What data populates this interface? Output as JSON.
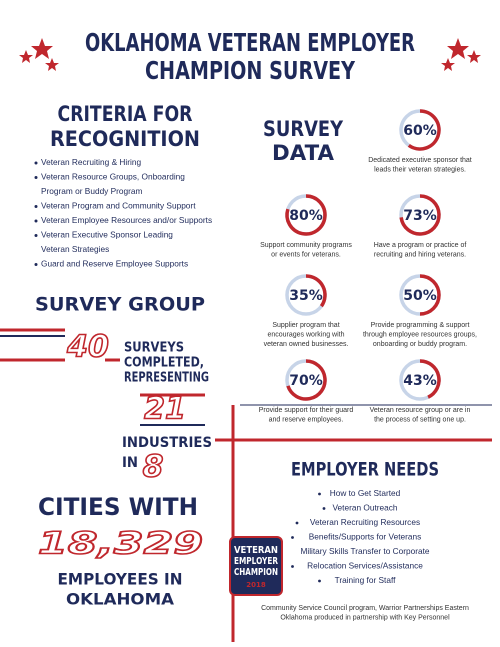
{
  "header": {
    "title_lines": [
      "OKLAHOMA VETERAN EMPLOYER",
      "CHAMPION SURVEY"
    ]
  },
  "criteria": {
    "title_lines": [
      "CRITERIA FOR",
      "RECOGNITION"
    ],
    "items": [
      [
        "Veteran Recruiting & Hiring"
      ],
      [
        "Veteran Resource Groups, Onboarding",
        "Program or Buddy Program"
      ],
      [
        "Veteran Program and Community Support"
      ],
      [
        "Veteran Employee Resources and/or Supports"
      ],
      [
        "Veteran Executive Sponsor Leading",
        "Veteran Strategies"
      ],
      [
        "Guard and Reserve Employee Supports"
      ]
    ]
  },
  "survey_data": {
    "title_lines": [
      "SURVEY",
      "DATA"
    ],
    "items": [
      {
        "value": 60,
        "label": "60%",
        "caption": [
          "Dedicated executive sponsor that",
          "leads their veteran strategies."
        ]
      },
      {
        "value": 80,
        "label": "80%",
        "caption": [
          "Support community programs",
          "or events for veterans."
        ]
      },
      {
        "value": 73,
        "label": "73%",
        "caption": [
          "Have a program or practice of",
          "recruiting and hiring veterans."
        ]
      },
      {
        "value": 35,
        "label": "35%",
        "caption": [
          "Supplier program that",
          "encourages working with",
          "veteran owned businesses."
        ]
      },
      {
        "value": 50,
        "label": "50%",
        "caption": [
          "Provide programming & support",
          "through employee resources groups,",
          "onboarding or buddy program."
        ]
      },
      {
        "value": 70,
        "label": "70%",
        "caption": [
          "Provide support for their guard",
          "and reserve employees."
        ]
      },
      {
        "value": 43,
        "label": "43%",
        "caption": [
          "Veteran resource group or are in",
          "the process of setting one up."
        ]
      }
    ]
  },
  "survey_group": {
    "title": "SURVEY GROUP",
    "surveys": 40,
    "surveys_text": [
      "SURVEYS",
      "COMPLETED,",
      "REPRESENTING"
    ],
    "industries": 21,
    "industries_text": [
      "INDUSTRIES",
      "IN"
    ],
    "cities": 8,
    "cities_text": "CITIES WITH",
    "employees": "18,329",
    "employees_text": [
      "EMPLOYEES IN",
      "OKLAHOMA"
    ]
  },
  "employer_needs": {
    "title": "EMPLOYER NEEDS",
    "items": [
      "How to Get Started",
      "Veteran Outreach",
      "Veteran Recruiting Resources",
      "Benefits/Supports for Veterans",
      "Military Skills Transfer to Corporate",
      "Relocation Services/Assistance",
      "Training for Staff"
    ]
  },
  "badge": {
    "lines": [
      "VETERAN",
      "EMPLOYER",
      "CHAMPION"
    ],
    "year": "2018"
  },
  "footnote": [
    "Community Service Council program, Warrior Partnerships Eastern",
    "Oklahoma produced in partnership with Key Personnel"
  ]
}
